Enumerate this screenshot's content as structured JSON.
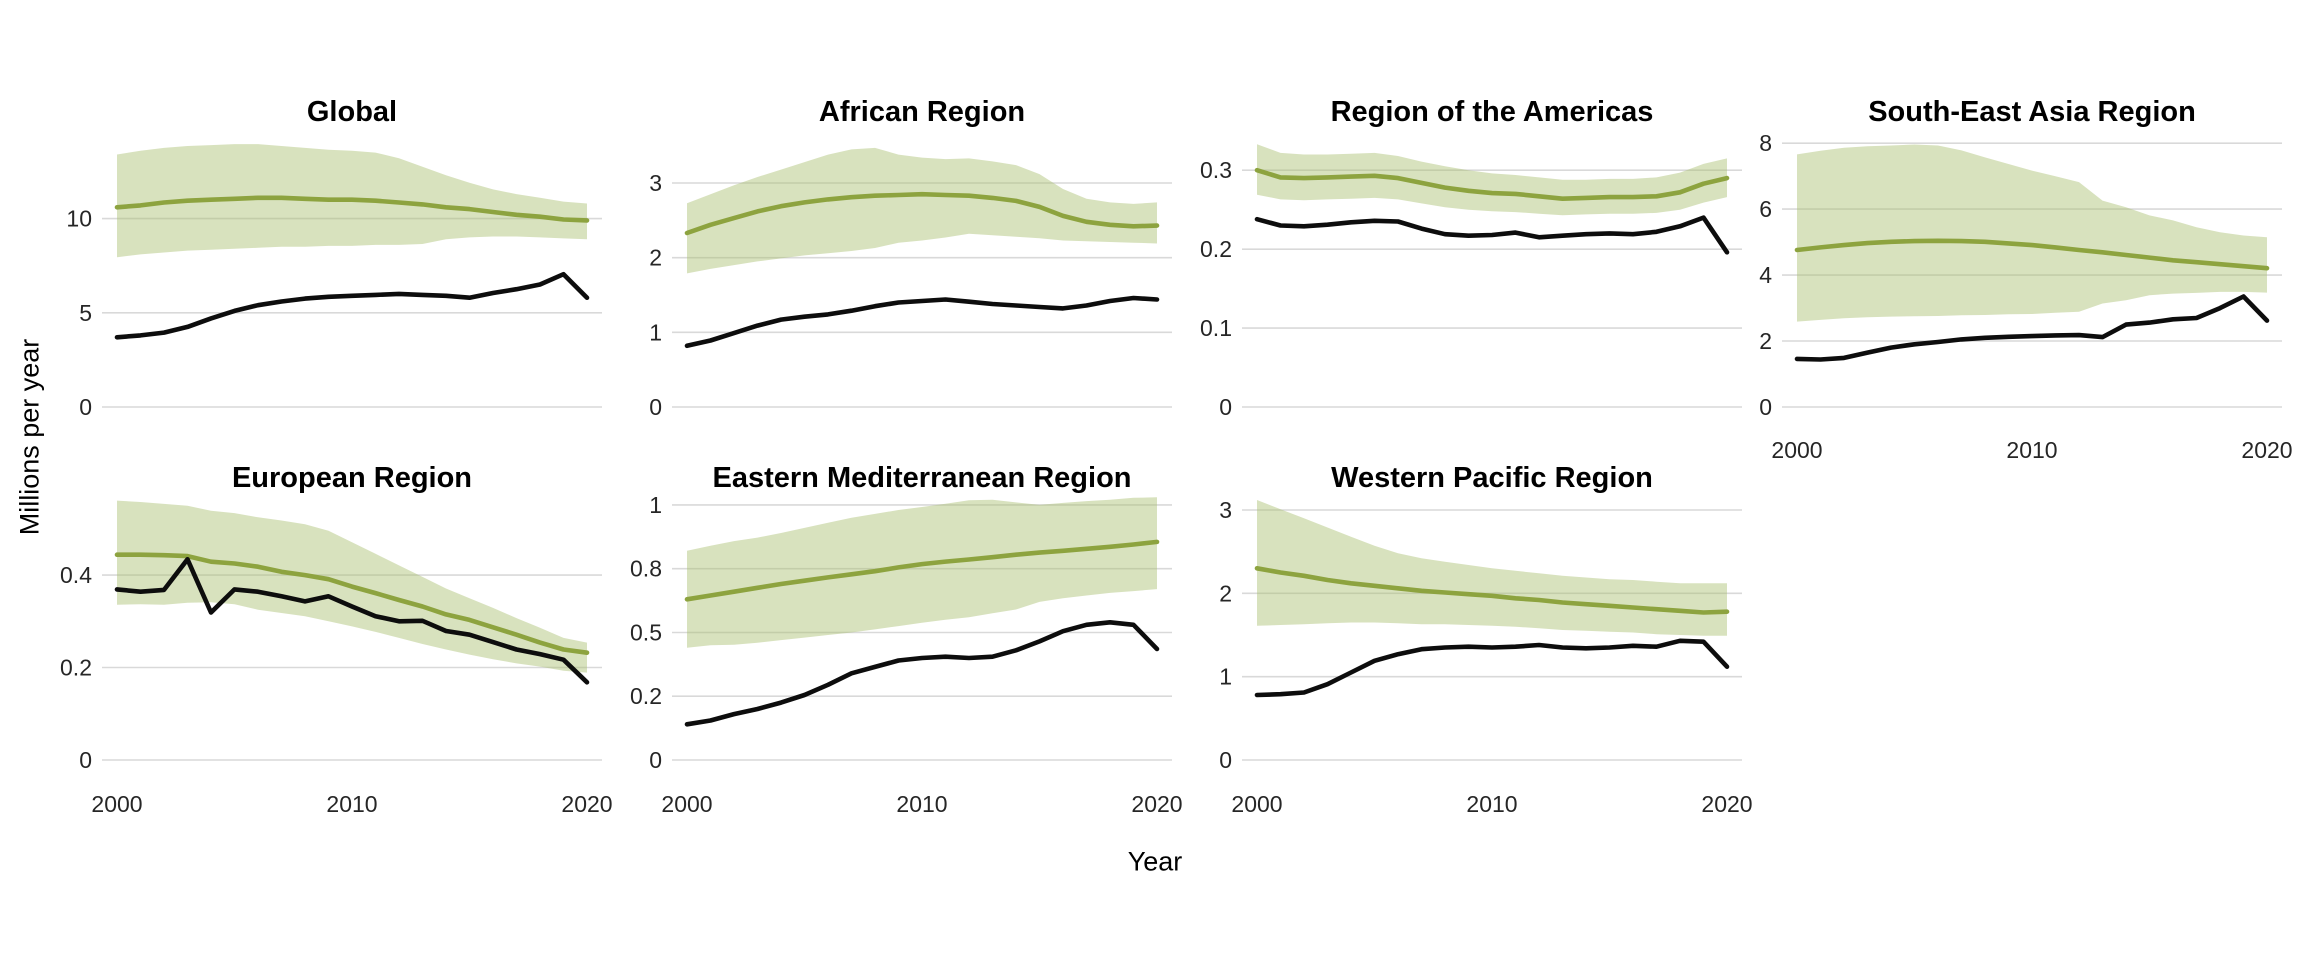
{
  "figure": {
    "y_axis_title": "Millions per year",
    "x_axis_title": "Year"
  },
  "styles": {
    "estimate_color": "#8da33f",
    "band_fill_color": "#a9bf6f",
    "band_fill_opacity": 0.45,
    "notified_color": "#0d0d0d",
    "grid_color": "#d9d9d9",
    "tick_text_color": "#262626",
    "title_text_color": "#000000",
    "background_color": "#ffffff"
  },
  "years": [
    2000,
    2001,
    2002,
    2003,
    2004,
    2005,
    2006,
    2007,
    2008,
    2009,
    2010,
    2011,
    2012,
    2013,
    2014,
    2015,
    2016,
    2017,
    2018,
    2019,
    2020
  ],
  "x_tick_values": [
    2000,
    2010,
    2020
  ],
  "x_tick_labels": [
    "2000",
    "2010",
    "2020"
  ],
  "chart_data": [
    {
      "type": "line",
      "title": "Global",
      "row": 0,
      "col": 0,
      "ylim": [
        0,
        14.7
      ],
      "y_breaks": [
        0,
        5,
        10
      ],
      "y_break_labels": [
        "0",
        "5",
        "10"
      ],
      "show_x_tick_labels": false,
      "grid": true,
      "series": [
        {
          "name": "estimate",
          "role": "estimate",
          "values": [
            10.6,
            10.7,
            10.85,
            10.95,
            11.0,
            11.05,
            11.1,
            11.1,
            11.05,
            11.0,
            11.0,
            10.95,
            10.85,
            10.75,
            10.6,
            10.5,
            10.35,
            10.2,
            10.1,
            9.95,
            9.9
          ]
        },
        {
          "name": "band_upper",
          "role": "band_upper",
          "values": [
            13.4,
            13.6,
            13.75,
            13.85,
            13.9,
            13.95,
            13.95,
            13.85,
            13.75,
            13.65,
            13.6,
            13.5,
            13.2,
            12.75,
            12.3,
            11.9,
            11.55,
            11.3,
            11.1,
            10.9,
            10.8
          ]
        },
        {
          "name": "band_lower",
          "role": "band_lower",
          "values": [
            7.95,
            8.1,
            8.2,
            8.3,
            8.35,
            8.4,
            8.45,
            8.5,
            8.5,
            8.55,
            8.55,
            8.6,
            8.6,
            8.65,
            8.9,
            9.0,
            9.05,
            9.05,
            9.0,
            8.95,
            8.9
          ]
        },
        {
          "name": "notified",
          "role": "notified",
          "values": [
            3.7,
            3.8,
            3.95,
            4.25,
            4.7,
            5.1,
            5.4,
            5.6,
            5.75,
            5.85,
            5.9,
            5.95,
            6.0,
            5.95,
            5.9,
            5.8,
            6.05,
            6.25,
            6.5,
            7.05,
            5.8
          ]
        }
      ]
    },
    {
      "type": "line",
      "title": "African Region",
      "row": 0,
      "col": 1,
      "ylim": [
        0,
        3.71
      ],
      "y_breaks": [
        0,
        1,
        2,
        3
      ],
      "y_break_labels": [
        "0",
        "1",
        "2",
        "3"
      ],
      "show_x_tick_labels": false,
      "grid": true,
      "series": [
        {
          "name": "estimate",
          "role": "estimate",
          "values": [
            2.33,
            2.44,
            2.53,
            2.62,
            2.69,
            2.74,
            2.78,
            2.81,
            2.83,
            2.84,
            2.85,
            2.84,
            2.83,
            2.8,
            2.76,
            2.68,
            2.56,
            2.48,
            2.44,
            2.42,
            2.43
          ]
        },
        {
          "name": "band_upper",
          "role": "band_upper",
          "values": [
            2.73,
            2.85,
            2.97,
            3.08,
            3.18,
            3.28,
            3.38,
            3.45,
            3.47,
            3.38,
            3.34,
            3.32,
            3.33,
            3.29,
            3.24,
            3.12,
            2.92,
            2.79,
            2.74,
            2.72,
            2.74
          ]
        },
        {
          "name": "band_lower",
          "role": "band_lower",
          "values": [
            1.79,
            1.85,
            1.9,
            1.95,
            1.99,
            2.03,
            2.06,
            2.09,
            2.13,
            2.2,
            2.23,
            2.27,
            2.32,
            2.3,
            2.28,
            2.26,
            2.23,
            2.22,
            2.21,
            2.2,
            2.19
          ]
        },
        {
          "name": "notified",
          "role": "notified",
          "values": [
            0.82,
            0.89,
            0.99,
            1.09,
            1.17,
            1.21,
            1.24,
            1.29,
            1.35,
            1.4,
            1.42,
            1.44,
            1.41,
            1.38,
            1.36,
            1.34,
            1.32,
            1.36,
            1.42,
            1.46,
            1.44
          ]
        }
      ]
    },
    {
      "type": "line",
      "title": "Region of the Americas",
      "row": 0,
      "col": 2,
      "ylim": [
        0,
        0.351
      ],
      "y_breaks": [
        0,
        0.1,
        0.2,
        0.3
      ],
      "y_break_labels": [
        "0",
        "0.1",
        "0.2",
        "0.3"
      ],
      "show_x_tick_labels": false,
      "grid": true,
      "series": [
        {
          "name": "estimate",
          "role": "estimate",
          "values": [
            0.3,
            0.291,
            0.29,
            0.291,
            0.292,
            0.293,
            0.29,
            0.284,
            0.278,
            0.274,
            0.271,
            0.27,
            0.267,
            0.264,
            0.265,
            0.266,
            0.266,
            0.267,
            0.272,
            0.283,
            0.29
          ]
        },
        {
          "name": "band_upper",
          "role": "band_upper",
          "values": [
            0.333,
            0.322,
            0.32,
            0.32,
            0.321,
            0.322,
            0.318,
            0.311,
            0.305,
            0.3,
            0.296,
            0.294,
            0.291,
            0.288,
            0.288,
            0.289,
            0.289,
            0.291,
            0.297,
            0.308,
            0.315
          ]
        },
        {
          "name": "band_lower",
          "role": "band_lower",
          "values": [
            0.269,
            0.263,
            0.262,
            0.263,
            0.264,
            0.265,
            0.263,
            0.258,
            0.253,
            0.25,
            0.248,
            0.247,
            0.245,
            0.243,
            0.244,
            0.245,
            0.245,
            0.246,
            0.25,
            0.259,
            0.266
          ]
        },
        {
          "name": "notified",
          "role": "notified",
          "values": [
            0.238,
            0.23,
            0.229,
            0.231,
            0.234,
            0.236,
            0.235,
            0.226,
            0.219,
            0.217,
            0.218,
            0.221,
            0.215,
            0.217,
            0.219,
            0.22,
            0.219,
            0.222,
            0.229,
            0.24,
            0.196
          ]
        }
      ]
    },
    {
      "type": "line",
      "title": "South-East Asia Region",
      "row": 0,
      "col": 3,
      "ylim": [
        0,
        8.4
      ],
      "y_breaks": [
        0,
        2,
        4,
        6,
        8
      ],
      "y_break_labels": [
        "0",
        "2",
        "4",
        "6",
        "8"
      ],
      "show_x_tick_labels": true,
      "grid": true,
      "series": [
        {
          "name": "estimate",
          "role": "estimate",
          "values": [
            4.76,
            4.84,
            4.91,
            4.97,
            5.01,
            5.03,
            5.04,
            5.03,
            5.01,
            4.96,
            4.91,
            4.84,
            4.76,
            4.69,
            4.61,
            4.53,
            4.45,
            4.39,
            4.33,
            4.27,
            4.21
          ]
        },
        {
          "name": "band_upper",
          "role": "band_upper",
          "values": [
            7.66,
            7.77,
            7.86,
            7.91,
            7.93,
            7.96,
            7.93,
            7.78,
            7.57,
            7.37,
            7.17,
            7.0,
            6.82,
            6.26,
            6.06,
            5.81,
            5.66,
            5.45,
            5.3,
            5.2,
            5.15
          ]
        },
        {
          "name": "band_lower",
          "role": "band_lower",
          "values": [
            2.59,
            2.64,
            2.69,
            2.72,
            2.74,
            2.75,
            2.76,
            2.78,
            2.79,
            2.81,
            2.82,
            2.86,
            2.89,
            3.14,
            3.24,
            3.39,
            3.44,
            3.46,
            3.49,
            3.49,
            3.47
          ]
        },
        {
          "name": "notified",
          "role": "notified",
          "values": [
            1.46,
            1.44,
            1.49,
            1.65,
            1.8,
            1.9,
            1.97,
            2.05,
            2.1,
            2.13,
            2.15,
            2.17,
            2.18,
            2.12,
            2.5,
            2.56,
            2.66,
            2.7,
            3.0,
            3.35,
            2.62
          ]
        }
      ]
    },
    {
      "type": "line",
      "title": "European Region",
      "row": 1,
      "col": 0,
      "ylim": [
        0,
        0.571
      ],
      "y_breaks": [
        0,
        0.2,
        0.4
      ],
      "y_break_labels": [
        "0",
        "0.2",
        "0.4"
      ],
      "show_x_tick_labels": true,
      "grid": true,
      "series": [
        {
          "name": "estimate",
          "role": "estimate",
          "values": [
            0.444,
            0.444,
            0.443,
            0.441,
            0.429,
            0.425,
            0.418,
            0.407,
            0.4,
            0.391,
            0.375,
            0.361,
            0.346,
            0.332,
            0.315,
            0.303,
            0.287,
            0.271,
            0.254,
            0.239,
            0.232
          ]
        },
        {
          "name": "band_upper",
          "role": "band_upper",
          "values": [
            0.561,
            0.558,
            0.554,
            0.55,
            0.539,
            0.534,
            0.525,
            0.518,
            0.51,
            0.496,
            0.471,
            0.446,
            0.421,
            0.396,
            0.371,
            0.35,
            0.329,
            0.307,
            0.286,
            0.264,
            0.254
          ]
        },
        {
          "name": "band_lower",
          "role": "band_lower",
          "values": [
            0.336,
            0.337,
            0.336,
            0.34,
            0.341,
            0.337,
            0.325,
            0.318,
            0.311,
            0.3,
            0.289,
            0.277,
            0.264,
            0.251,
            0.239,
            0.228,
            0.218,
            0.209,
            0.202,
            0.193,
            0.189
          ]
        },
        {
          "name": "notified",
          "role": "notified",
          "values": [
            0.369,
            0.364,
            0.368,
            0.434,
            0.319,
            0.369,
            0.364,
            0.354,
            0.343,
            0.354,
            0.332,
            0.311,
            0.3,
            0.301,
            0.279,
            0.271,
            0.255,
            0.239,
            0.229,
            0.217,
            0.168
          ]
        }
      ]
    },
    {
      "type": "line",
      "title": "Eastern Mediterranean Region",
      "row": 1,
      "col": 1,
      "ylim": [
        0,
        1.035
      ],
      "y_breaks": [
        0,
        0.25,
        0.5,
        0.75,
        1
      ],
      "y_break_labels": [
        "0",
        "0.2",
        "0.5",
        "0.8",
        "1"
      ],
      "show_x_tick_labels": true,
      "grid": true,
      "series": [
        {
          "name": "estimate",
          "role": "estimate",
          "values": [
            0.63,
            0.645,
            0.66,
            0.675,
            0.69,
            0.703,
            0.716,
            0.728,
            0.74,
            0.755,
            0.768,
            0.778,
            0.786,
            0.795,
            0.805,
            0.813,
            0.82,
            0.828,
            0.836,
            0.845,
            0.855
          ]
        },
        {
          "name": "band_upper",
          "role": "band_upper",
          "values": [
            0.82,
            0.84,
            0.858,
            0.872,
            0.89,
            0.91,
            0.93,
            0.95,
            0.965,
            0.98,
            0.992,
            1.005,
            1.018,
            1.02,
            1.01,
            1.0,
            1.008,
            1.015,
            1.02,
            1.028,
            1.03
          ]
        },
        {
          "name": "band_lower",
          "role": "band_lower",
          "values": [
            0.44,
            0.45,
            0.452,
            0.46,
            0.47,
            0.48,
            0.49,
            0.5,
            0.512,
            0.525,
            0.538,
            0.55,
            0.56,
            0.575,
            0.59,
            0.62,
            0.634,
            0.645,
            0.655,
            0.662,
            0.67
          ]
        },
        {
          "name": "notified",
          "role": "notified",
          "values": [
            0.14,
            0.155,
            0.18,
            0.2,
            0.225,
            0.255,
            0.295,
            0.34,
            0.365,
            0.39,
            0.4,
            0.405,
            0.4,
            0.405,
            0.43,
            0.465,
            0.505,
            0.53,
            0.54,
            0.53,
            0.435
          ]
        }
      ]
    },
    {
      "type": "line",
      "title": "Western Pacific Region",
      "row": 1,
      "col": 2,
      "ylim": [
        0,
        3.168
      ],
      "y_breaks": [
        0,
        1,
        2,
        3
      ],
      "y_break_labels": [
        "0",
        "1",
        "2",
        "3"
      ],
      "show_x_tick_labels": true,
      "grid": true,
      "series": [
        {
          "name": "estimate",
          "role": "estimate",
          "values": [
            2.3,
            2.25,
            2.21,
            2.16,
            2.12,
            2.09,
            2.06,
            2.03,
            2.01,
            1.99,
            1.97,
            1.94,
            1.92,
            1.89,
            1.87,
            1.85,
            1.83,
            1.81,
            1.79,
            1.77,
            1.78
          ]
        },
        {
          "name": "band_upper",
          "role": "band_upper",
          "values": [
            3.12,
            3.01,
            2.9,
            2.79,
            2.68,
            2.57,
            2.48,
            2.42,
            2.38,
            2.34,
            2.3,
            2.27,
            2.24,
            2.21,
            2.19,
            2.17,
            2.16,
            2.14,
            2.12,
            2.12,
            2.12
          ]
        },
        {
          "name": "band_lower",
          "role": "band_lower",
          "values": [
            1.61,
            1.62,
            1.63,
            1.64,
            1.65,
            1.65,
            1.64,
            1.63,
            1.63,
            1.62,
            1.61,
            1.6,
            1.58,
            1.56,
            1.55,
            1.54,
            1.53,
            1.51,
            1.5,
            1.49,
            1.49
          ]
        },
        {
          "name": "notified",
          "role": "notified",
          "values": [
            0.78,
            0.79,
            0.81,
            0.91,
            1.05,
            1.19,
            1.27,
            1.33,
            1.35,
            1.36,
            1.35,
            1.36,
            1.38,
            1.35,
            1.34,
            1.35,
            1.37,
            1.36,
            1.43,
            1.42,
            1.12
          ]
        }
      ]
    }
  ]
}
